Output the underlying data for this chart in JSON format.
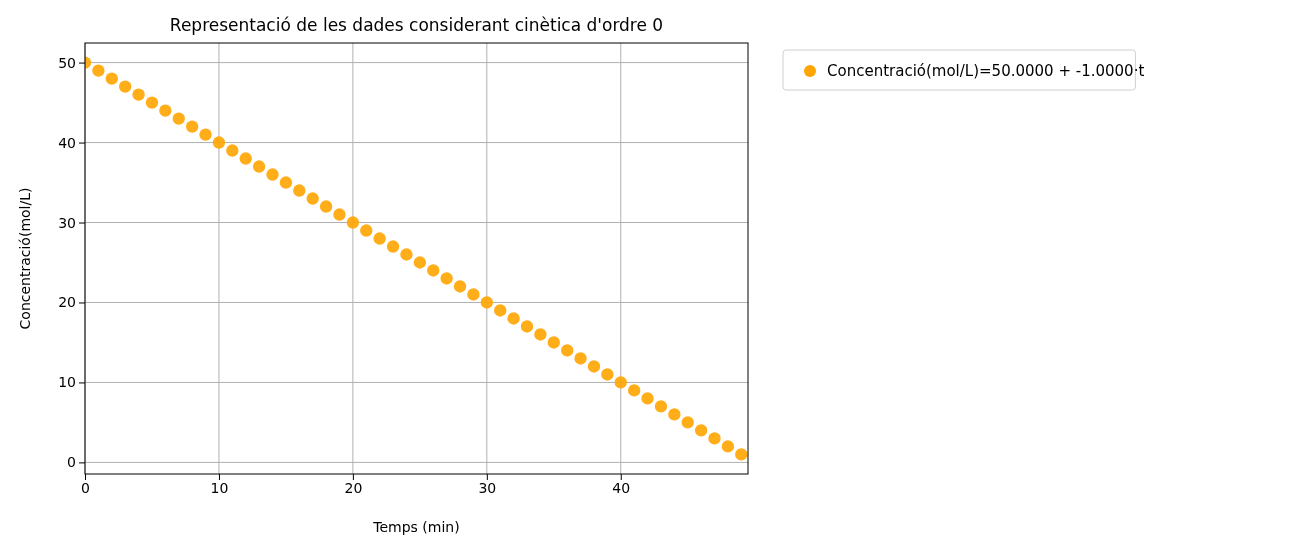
{
  "chart_data": {
    "type": "scatter",
    "title": "Representació de les dades considerant cinètica d'ordre 0",
    "xlabel": "Temps (min)",
    "ylabel": "Concentració(mol/L)",
    "x": [
      0,
      1,
      2,
      3,
      4,
      5,
      6,
      7,
      8,
      9,
      10,
      11,
      12,
      13,
      14,
      15,
      16,
      17,
      18,
      19,
      20,
      21,
      22,
      23,
      24,
      25,
      26,
      27,
      28,
      29,
      30,
      31,
      32,
      33,
      34,
      35,
      36,
      37,
      38,
      39,
      40,
      41,
      42,
      43,
      44,
      45,
      46,
      47,
      48,
      49
    ],
    "series": [
      {
        "name": "Concentració(mol/L)=50.0000 + -1.0000·t",
        "color": "#ffa500",
        "values": [
          50,
          49,
          48,
          47,
          46,
          45,
          44,
          43,
          42,
          41,
          40,
          39,
          38,
          37,
          36,
          35,
          34,
          33,
          32,
          31,
          30,
          29,
          28,
          27,
          26,
          25,
          24,
          23,
          22,
          21,
          20,
          19,
          18,
          17,
          16,
          15,
          14,
          13,
          12,
          11,
          10,
          9,
          8,
          7,
          6,
          5,
          4,
          3,
          2,
          1
        ]
      }
    ],
    "xlim": [
      0,
      49.5
    ],
    "xticks": [
      0,
      10,
      20,
      30,
      40
    ],
    "ylim": [
      -1.45,
      52.45
    ],
    "yticks": [
      0,
      10,
      20,
      30,
      40,
      50
    ],
    "grid": true,
    "legend": "top right",
    "marker": "circle"
  }
}
